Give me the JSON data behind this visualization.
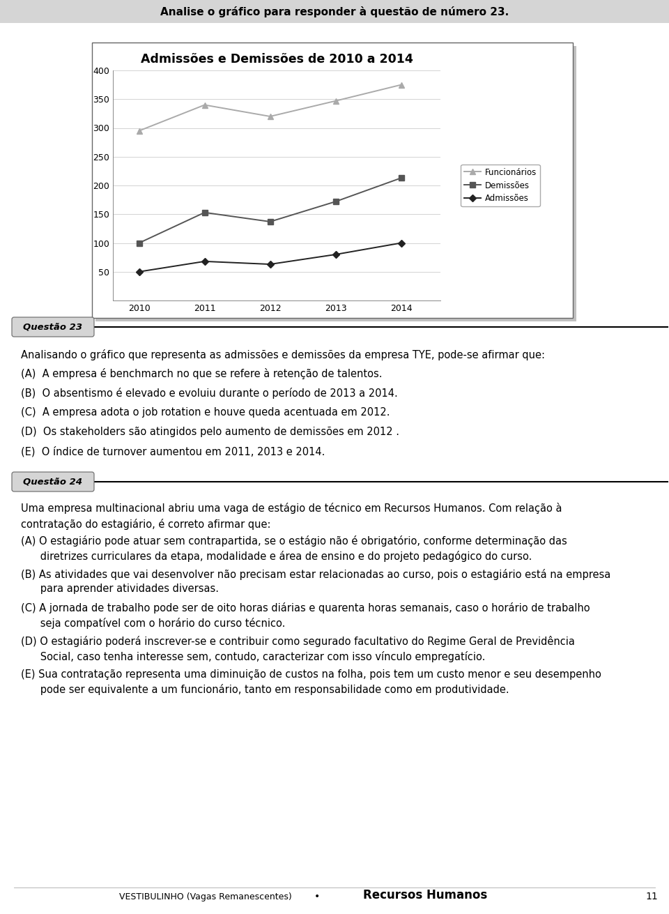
{
  "page_header": "Analise o gráfico para responder à questão de número 23.",
  "chart_title": "Admissões e Demissões de 2010 a 2014",
  "years": [
    2010,
    2011,
    2012,
    2013,
    2014
  ],
  "funcionarios": [
    295,
    340,
    320,
    347,
    375
  ],
  "demissoes": [
    100,
    153,
    137,
    172,
    213
  ],
  "admissoes": [
    50,
    68,
    63,
    80,
    100
  ],
  "ylim": [
    0,
    400
  ],
  "yticks": [
    0,
    50,
    100,
    150,
    200,
    250,
    300,
    350,
    400
  ],
  "legend_labels": [
    "Funcionários",
    "Demissões",
    "Admissões"
  ],
  "questao23_label": "Questão 23",
  "q23_intro": "Analisando o gráfico que representa as admissões e demissões da empresa TYE, pode-se afirmar que:",
  "q23_options": [
    "(A)  A empresa é benchmarch no que se refere à retenção de talentos.",
    "(B)  O absentismo é elevado e evoluiu durante o período de 2013 a 2014.",
    "(C)  A empresa adota o job rotation e houve queda acentuada em 2012.",
    "(D)  Os stakeholders são atingidos pelo aumento de demissões em 2012 .",
    "(E)  O índice de turnover aumentou em 2011, 2013 e 2014."
  ],
  "questao24_label": "Questão 24",
  "q24_intro": "Uma empresa multinacional abriu uma vaga de estágio de técnico em Recursos Humanos. Com relação à contratação do estagiário, é correto afirmar que:",
  "q24_options_A": "(A) O estagiário pode atuar sem contrapartida, se o estágio não é obrigatório, conforme determinação das\n      diretrizes curriculares da etapa, modalidade e área de ensino e do projeto pedagógico do curso.",
  "q24_options_B": "(B) As atividades que vai desenvolver não precisam estar relacionadas ao curso, pois o estagiário está na empresa\n      para aprender atividades diversas.",
  "q24_options_C": "(C) A jornada de trabalho pode ser de oito horas diárias e quarenta horas semanais, caso o horário de trabalho\n      seja compatível com o horário do curso técnico.",
  "q24_options_D": "(D) O estagiário poderá inscrever-se e contribuir como segurado facultativo do Regime Geral de Previdência\n      Social, caso tenha interesse sem, contudo, caracterizar com isso vínculo empregatício.",
  "q24_options_E": "(E) Sua contratação representa uma diminuição de custos na folha, pois tem um custo menor e seu desempenho\n      pode ser equivalente a um funcionário, tanto em responsabilidade como em produtividade.",
  "footer_left": "VESTIBULINHO (Vagas Remanescentes)",
  "footer_dot": "•",
  "footer_right": "Recursos Humanos",
  "page_number": "11"
}
